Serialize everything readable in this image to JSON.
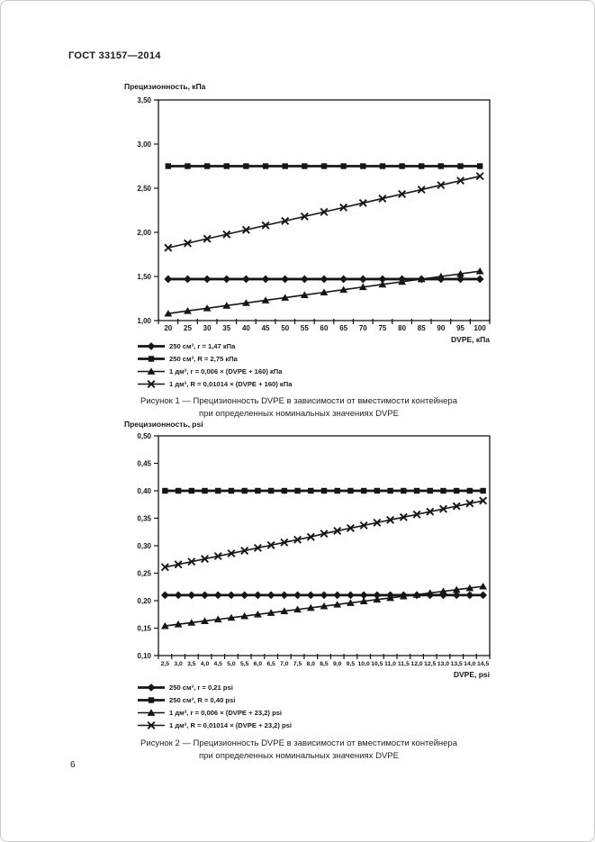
{
  "page": {
    "header": "ГОСТ 33157—2014",
    "page_number": "6",
    "text_color": "#1a1a1a",
    "background_color": "#ffffff",
    "line_color": "#161616"
  },
  "figures": [
    {
      "caption_line1": "Рисунок 1 — Прецизионность DVPE в зависимости от вместимости контейнера",
      "caption_line2": "при определенных номинальных значениях DVPE"
    },
    {
      "caption_line1": "Рисунок 2 — Прецизионность DVPE в зависимости от вместимости контейнера",
      "caption_line2": "при определенных номинальных значениях DVPE"
    }
  ],
  "chart_data": [
    {
      "type": "line",
      "title": "",
      "ylabel": "Прецизионность, кПа",
      "xlabel": "DVPE, кПа",
      "grid": false,
      "legend_position": "below-left",
      "ylim": [
        1.0,
        3.5
      ],
      "ytick_step": 0.5,
      "y_decimals": 2,
      "x_decimals": 0,
      "x": [
        20,
        25,
        30,
        35,
        40,
        45,
        50,
        55,
        60,
        65,
        70,
        75,
        80,
        85,
        90,
        95,
        100
      ],
      "series": [
        {
          "name": "250 см³, r = 1,47 кПа",
          "marker": "diamond",
          "values": [
            1.47,
            1.47,
            1.47,
            1.47,
            1.47,
            1.47,
            1.47,
            1.47,
            1.47,
            1.47,
            1.47,
            1.47,
            1.47,
            1.47,
            1.47,
            1.47,
            1.47
          ]
        },
        {
          "name": "250 см³, R = 2,75 кПа",
          "marker": "square",
          "values": [
            2.75,
            2.75,
            2.75,
            2.75,
            2.75,
            2.75,
            2.75,
            2.75,
            2.75,
            2.75,
            2.75,
            2.75,
            2.75,
            2.75,
            2.75,
            2.75,
            2.75
          ]
        },
        {
          "name": "1 дм³, r = 0,006 × (DVPE + 160) кПа",
          "marker": "triangle",
          "values": [
            1.08,
            1.11,
            1.14,
            1.17,
            1.2,
            1.23,
            1.26,
            1.29,
            1.32,
            1.35,
            1.38,
            1.41,
            1.44,
            1.47,
            1.5,
            1.53,
            1.56
          ]
        },
        {
          "name": "1 дм³, R = 0,01014 × (DVPE + 160) кПа",
          "marker": "x",
          "values": [
            1.825,
            1.876,
            1.927,
            1.977,
            2.028,
            2.079,
            2.129,
            2.18,
            2.231,
            2.282,
            2.332,
            2.383,
            2.434,
            2.484,
            2.535,
            2.586,
            2.636
          ]
        }
      ]
    },
    {
      "type": "line",
      "title": "",
      "ylabel": "Прецизионность, psi",
      "xlabel": "DVPE, psi",
      "grid": false,
      "legend_position": "below-left",
      "ylim": [
        0.1,
        0.5
      ],
      "ytick_step": 0.05,
      "y_decimals": 2,
      "x_decimals": 1,
      "x": [
        2.5,
        3.0,
        3.5,
        4.0,
        4.5,
        5.0,
        5.5,
        6.0,
        6.5,
        7.0,
        7.5,
        8.0,
        8.5,
        9.0,
        9.5,
        10.0,
        10.5,
        11.0,
        11.5,
        12.0,
        12.5,
        13.0,
        13.5,
        14.0,
        14.5
      ],
      "series": [
        {
          "name": "250 см³, r = 0,21 psi",
          "marker": "diamond",
          "values": [
            0.21,
            0.21,
            0.21,
            0.21,
            0.21,
            0.21,
            0.21,
            0.21,
            0.21,
            0.21,
            0.21,
            0.21,
            0.21,
            0.21,
            0.21,
            0.21,
            0.21,
            0.21,
            0.21,
            0.21,
            0.21,
            0.21,
            0.21,
            0.21,
            0.21
          ]
        },
        {
          "name": "250 см³, R = 0,40 psi",
          "marker": "square",
          "values": [
            0.4,
            0.4,
            0.4,
            0.4,
            0.4,
            0.4,
            0.4,
            0.4,
            0.4,
            0.4,
            0.4,
            0.4,
            0.4,
            0.4,
            0.4,
            0.4,
            0.4,
            0.4,
            0.4,
            0.4,
            0.4,
            0.4,
            0.4,
            0.4,
            0.4
          ]
        },
        {
          "name": "1 дм³, r = 0,006 × (DVPE + 23,2) psi",
          "marker": "triangle",
          "values": [
            0.154,
            0.157,
            0.16,
            0.163,
            0.166,
            0.169,
            0.172,
            0.175,
            0.178,
            0.181,
            0.184,
            0.187,
            0.19,
            0.193,
            0.196,
            0.199,
            0.202,
            0.205,
            0.208,
            0.211,
            0.214,
            0.217,
            0.22,
            0.223,
            0.226
          ]
        },
        {
          "name": "1 дм³, R = 0,01014 × (DVPE + 23,2) psi",
          "marker": "x",
          "values": [
            0.261,
            0.266,
            0.271,
            0.276,
            0.281,
            0.286,
            0.291,
            0.296,
            0.301,
            0.306,
            0.311,
            0.316,
            0.322,
            0.327,
            0.332,
            0.337,
            0.342,
            0.347,
            0.352,
            0.357,
            0.362,
            0.367,
            0.372,
            0.377,
            0.382
          ]
        }
      ]
    }
  ]
}
